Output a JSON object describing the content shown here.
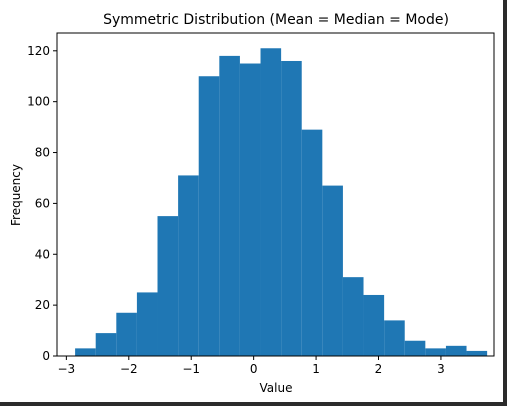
{
  "chart_data": {
    "type": "bar",
    "title": "Symmetric Distribution (Mean = Median = Mode)",
    "xlabel": "Value",
    "ylabel": "Frequency",
    "bar_color": "#1f77b4",
    "xlim": [
      -3.15,
      3.85
    ],
    "ylim": [
      0,
      127
    ],
    "xticks": [
      -3,
      -2,
      -1,
      0,
      1,
      2,
      3
    ],
    "xtick_labels": [
      "−3",
      "−2",
      "−1",
      "0",
      "1",
      "2",
      "3"
    ],
    "yticks": [
      0,
      20,
      40,
      60,
      80,
      100,
      120
    ],
    "ytick_labels": [
      "0",
      "20",
      "40",
      "60",
      "80",
      "100",
      "120"
    ],
    "grid": false,
    "bins": [
      {
        "x0": -2.86,
        "x1": -2.53,
        "count": 3
      },
      {
        "x0": -2.53,
        "x1": -2.2,
        "count": 9
      },
      {
        "x0": -2.2,
        "x1": -1.87,
        "count": 17
      },
      {
        "x0": -1.87,
        "x1": -1.54,
        "count": 25
      },
      {
        "x0": -1.54,
        "x1": -1.21,
        "count": 55
      },
      {
        "x0": -1.21,
        "x1": -0.88,
        "count": 71
      },
      {
        "x0": -0.88,
        "x1": -0.55,
        "count": 110
      },
      {
        "x0": -0.55,
        "x1": -0.22,
        "count": 118
      },
      {
        "x0": -0.22,
        "x1": 0.11,
        "count": 115
      },
      {
        "x0": 0.11,
        "x1": 0.44,
        "count": 121
      },
      {
        "x0": 0.44,
        "x1": 0.77,
        "count": 116
      },
      {
        "x0": 0.77,
        "x1": 1.1,
        "count": 89
      },
      {
        "x0": 1.1,
        "x1": 1.43,
        "count": 67
      },
      {
        "x0": 1.43,
        "x1": 1.76,
        "count": 31
      },
      {
        "x0": 1.76,
        "x1": 2.09,
        "count": 24
      },
      {
        "x0": 2.09,
        "x1": 2.42,
        "count": 14
      },
      {
        "x0": 2.42,
        "x1": 2.75,
        "count": 6
      },
      {
        "x0": 2.75,
        "x1": 3.08,
        "count": 3
      },
      {
        "x0": 3.08,
        "x1": 3.41,
        "count": 4
      },
      {
        "x0": 3.41,
        "x1": 3.74,
        "count": 2
      }
    ]
  }
}
